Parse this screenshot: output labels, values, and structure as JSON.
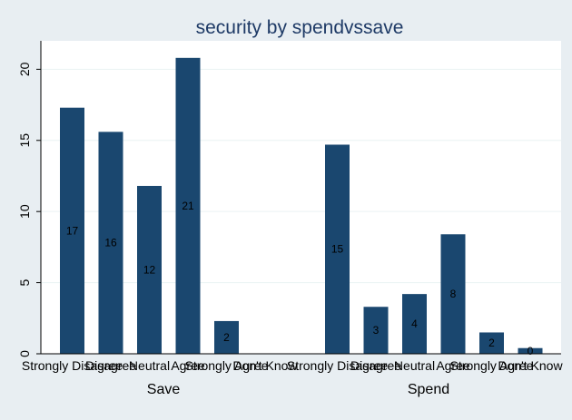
{
  "chart_data": {
    "type": "bar",
    "title": "security by spendvssave",
    "xlabel": "",
    "ylabel": "",
    "ylim": [
      0,
      22
    ],
    "yticks": [
      0,
      5,
      10,
      15,
      20
    ],
    "grid": true,
    "legend": "none",
    "categories": [
      "Strongly Disagree",
      "Disagree",
      "Neutral",
      "Agree",
      "Strongly Agree",
      "Don't Know"
    ],
    "groups": [
      {
        "name": "Save",
        "values": [
          17.3,
          15.6,
          11.8,
          20.8,
          2.3,
          0
        ],
        "labels": [
          "17",
          "16",
          "12",
          "21",
          "2",
          ""
        ]
      },
      {
        "name": "Spend",
        "values": [
          14.7,
          3.3,
          4.2,
          8.4,
          1.5,
          0.4
        ],
        "labels": [
          "15",
          "3",
          "4",
          "8",
          "2",
          "0"
        ]
      }
    ],
    "colors": {
      "background": "#e8eef2",
      "plot": "#ffffff",
      "bar": "#1a476f",
      "grid": "#eaf2f3",
      "title": "#1e3a66",
      "text": "#000000"
    }
  }
}
